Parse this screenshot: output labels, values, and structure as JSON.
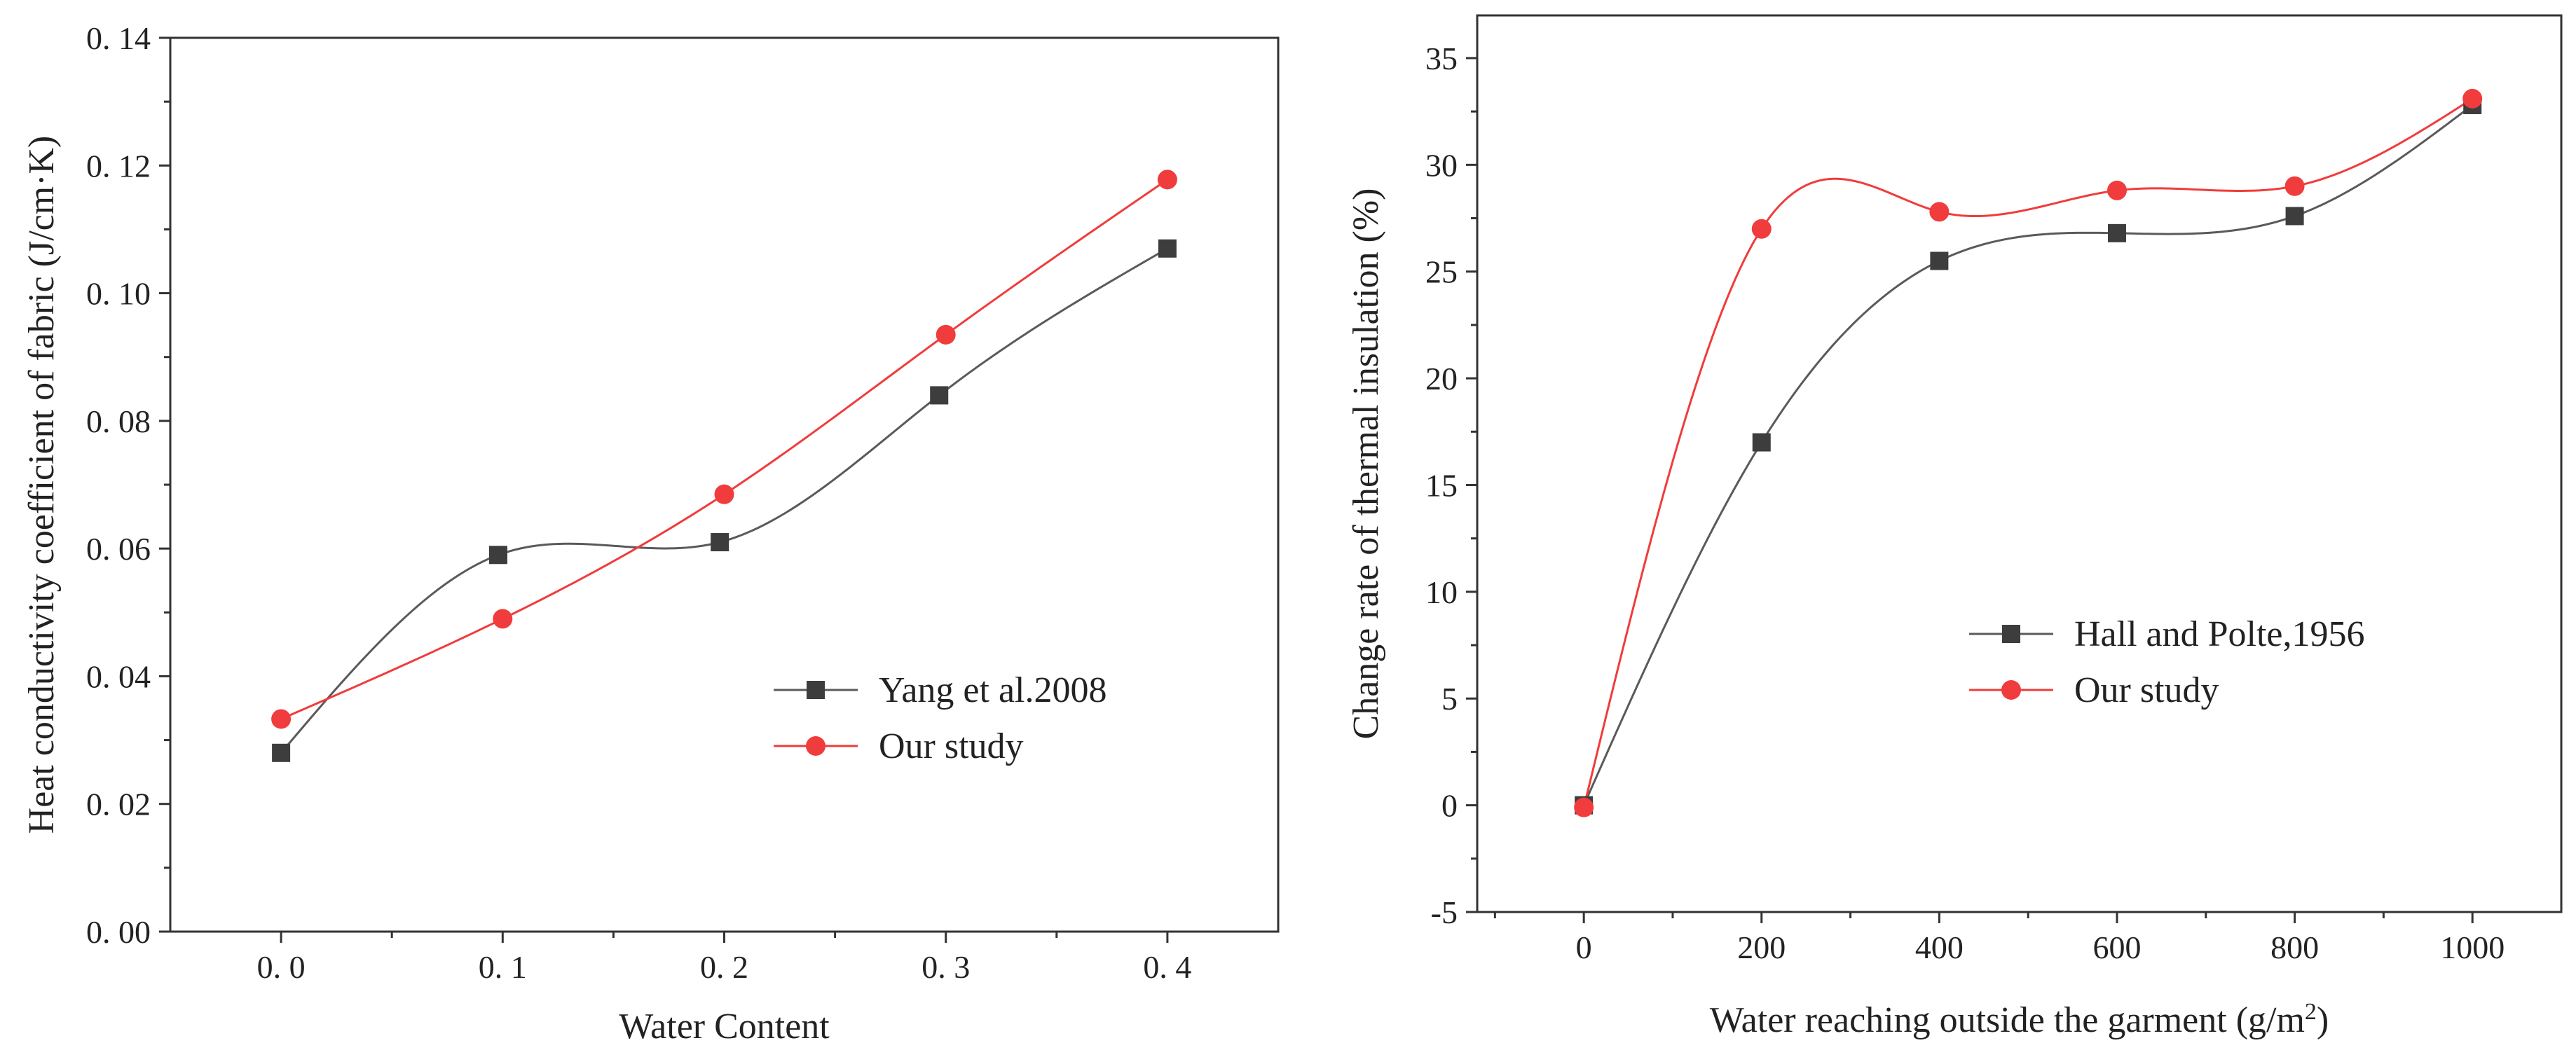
{
  "chart_data": [
    {
      "type": "line",
      "title": "",
      "xlabel": "Water Content",
      "ylabel": "Heat conductivity coefficient of fabric (J/cm·K)",
      "xlim": [
        -0.05,
        0.45
      ],
      "ylim": [
        0.0,
        0.14
      ],
      "x_ticks": [
        0.0,
        0.1,
        0.2,
        0.3,
        0.4
      ],
      "x_tick_labels": [
        "0. 0",
        "0. 1",
        "0. 2",
        "0. 3",
        "0. 4"
      ],
      "y_ticks": [
        0.0,
        0.02,
        0.04,
        0.06,
        0.08,
        0.1,
        0.12,
        0.14
      ],
      "y_tick_labels": [
        "0. 00",
        "0. 02",
        "0. 04",
        "0. 06",
        "0. 08",
        "0. 10",
        "0. 12",
        "0. 14"
      ],
      "grid": false,
      "legend_position": "lower-right",
      "series": [
        {
          "name": "Yang et al.2008",
          "marker": "square",
          "marker_color": "#3d3d3d",
          "line_color": "#5a5a5a",
          "x": [
            0.0,
            0.098,
            0.198,
            0.297,
            0.4
          ],
          "y": [
            0.028,
            0.059,
            0.061,
            0.084,
            0.107
          ]
        },
        {
          "name": "Our study",
          "marker": "circle",
          "marker_color": "#f03c3c",
          "line_color": "#f03c3c",
          "x": [
            0.0,
            0.1,
            0.2,
            0.3,
            0.4
          ],
          "y": [
            0.0333,
            0.049,
            0.0685,
            0.0935,
            0.1178
          ]
        }
      ]
    },
    {
      "type": "line",
      "title": "",
      "xlabel": "Water reaching outside the garment (g/m",
      "xlabel_sup": "2",
      "xlabel_end": ")",
      "ylabel": "Change rate of thermal insulation (%)",
      "xlim": [
        -120,
        1100
      ],
      "ylim": [
        -5,
        37
      ],
      "x_ticks": [
        0,
        200,
        400,
        600,
        800,
        1000
      ],
      "x_tick_labels": [
        "0",
        "200",
        "400",
        "600",
        "800",
        "1000"
      ],
      "y_ticks": [
        -5,
        0,
        5,
        10,
        15,
        20,
        25,
        30,
        35
      ],
      "y_tick_labels": [
        "-5",
        "0",
        "5",
        "10",
        "15",
        "20",
        "25",
        "30",
        "35"
      ],
      "grid": false,
      "legend_position": "center-right",
      "series": [
        {
          "name": "Hall and Polte,1956",
          "marker": "square",
          "marker_color": "#3d3d3d",
          "line_color": "#5a5a5a",
          "x": [
            0,
            200,
            400,
            600,
            800,
            1000
          ],
          "y": [
            0,
            17,
            25.5,
            26.8,
            27.6,
            32.8
          ]
        },
        {
          "name": "Our study",
          "marker": "circle",
          "marker_color": "#f03c3c",
          "line_color": "#f03c3c",
          "x": [
            0,
            200,
            400,
            600,
            800,
            1000
          ],
          "y": [
            -0.1,
            27,
            27.8,
            28.8,
            29,
            33.1
          ]
        }
      ]
    }
  ]
}
